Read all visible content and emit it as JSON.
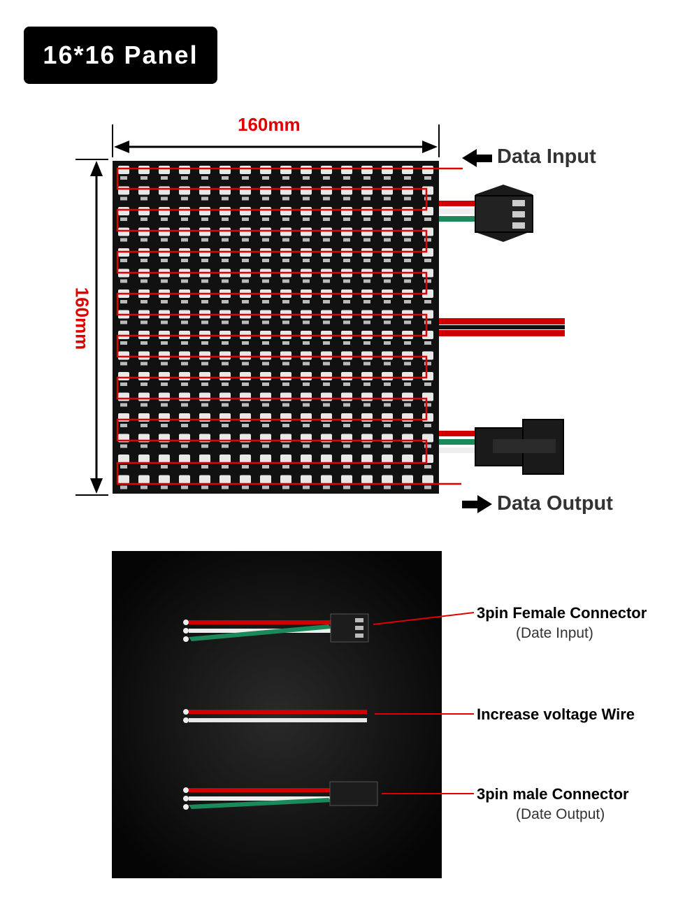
{
  "title": "16*16 Panel",
  "dimensions": {
    "width_label": "160mm",
    "height_label": "160mm"
  },
  "flow": {
    "input_label": "Data Input",
    "output_label": "Data Output"
  },
  "callouts": [
    {
      "title": "3pin Female Connector",
      "subtitle": "(Date Input)"
    },
    {
      "title": "Increase voltage Wire",
      "subtitle": ""
    },
    {
      "title": "3pin male Connector",
      "subtitle": "(Date Output)"
    }
  ],
  "colors": {
    "red": "#e00000",
    "green": "#1a8a5a",
    "panel": "#111111",
    "badge": "#000000"
  }
}
